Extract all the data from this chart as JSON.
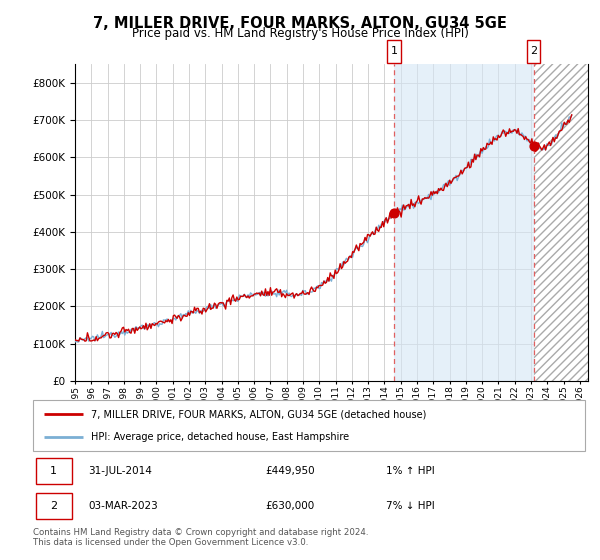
{
  "title": "7, MILLER DRIVE, FOUR MARKS, ALTON, GU34 5GE",
  "subtitle": "Price paid vs. HM Land Registry's House Price Index (HPI)",
  "ylim": [
    0,
    850000
  ],
  "yticks": [
    0,
    100000,
    200000,
    300000,
    400000,
    500000,
    600000,
    700000,
    800000
  ],
  "hpi_color": "#7bafd4",
  "price_color": "#cc0000",
  "dashed_color": "#e06060",
  "marker1_year": 2014.58,
  "marker2_year": 2023.17,
  "marker1_price": 449950,
  "marker2_price": 630000,
  "legend_line1": "7, MILLER DRIVE, FOUR MARKS, ALTON, GU34 5GE (detached house)",
  "legend_line2": "HPI: Average price, detached house, East Hampshire",
  "table_row1_num": "1",
  "table_row1_date": "31-JUL-2014",
  "table_row1_price": "£449,950",
  "table_row1_hpi": "1% ↑ HPI",
  "table_row2_num": "2",
  "table_row2_date": "03-MAR-2023",
  "table_row2_price": "£630,000",
  "table_row2_hpi": "7% ↓ HPI",
  "footer": "Contains HM Land Registry data © Crown copyright and database right 2024.\nThis data is licensed under the Open Government Licence v3.0.",
  "xmin": 1995,
  "xmax": 2026,
  "hatch_start": 2023.17,
  "hatch_end": 2026.5,
  "fill_start": 2014.58,
  "fill_end": 2023.17
}
